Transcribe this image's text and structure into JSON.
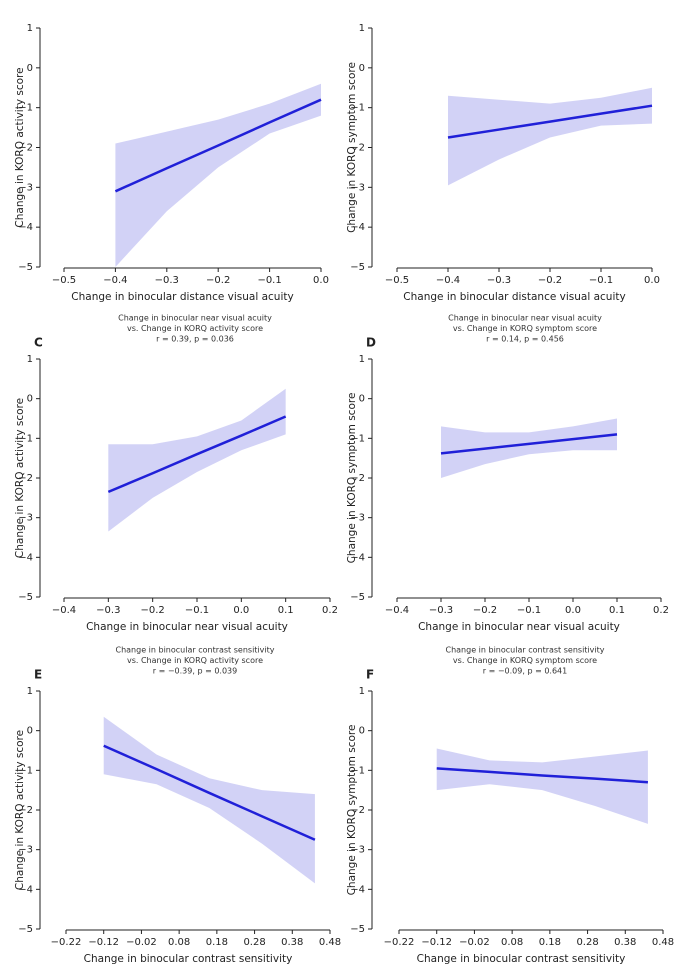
{
  "chart_data": [
    {
      "type": "line",
      "xlabel": "Change in binocular distance visual acuity",
      "ylabel": "Change in KORQ activity score",
      "xlim": [
        -0.5,
        0.0
      ],
      "ylim": [
        -5,
        1
      ],
      "xticks": [
        {
          "value": -0.5,
          "label": "−0.5"
        },
        {
          "value": -0.4,
          "label": "−0.4"
        },
        {
          "value": -0.3,
          "label": "−0.3"
        },
        {
          "value": -0.2,
          "label": "−0.2"
        },
        {
          "value": -0.1,
          "label": "−0.1"
        },
        {
          "value": 0.0,
          "label": "0.0"
        }
      ],
      "yticks": [
        1,
        0,
        {
          "value": -1,
          "label": "−1"
        },
        {
          "value": -2,
          "label": "−2"
        },
        {
          "value": -3,
          "label": "−3"
        },
        {
          "value": -4,
          "label": "−4"
        },
        {
          "value": -5,
          "label": "−5"
        }
      ],
      "x": [
        -0.4,
        -0.3,
        -0.2,
        -0.1,
        0.0
      ],
      "values": [
        -3.1,
        -2.52,
        -1.95,
        -1.37,
        -0.8
      ],
      "ci_lower": [
        -5,
        -3.6,
        -2.5,
        -1.65,
        -1.2
      ],
      "ci_upper": [
        -1.9,
        -1.6,
        -1.3,
        -0.9,
        -0.4
      ],
      "color": "#2020d8",
      "band_color": "#7f7fe6"
    },
    {
      "type": "line",
      "xlabel": "Change in binocular distance visual acuity",
      "ylabel": "Change in KORQ symptom score",
      "xlim": [
        -0.5,
        0.0
      ],
      "ylim": [
        -5,
        1
      ],
      "xticks": [
        {
          "value": -0.5,
          "label": "−0.5"
        },
        {
          "value": -0.4,
          "label": "−0.4"
        },
        {
          "value": -0.3,
          "label": "−0.3"
        },
        {
          "value": -0.2,
          "label": "−0.2"
        },
        {
          "value": -0.1,
          "label": "−0.1"
        },
        {
          "value": 0.0,
          "label": "0.0"
        }
      ],
      "yticks": [
        1,
        0,
        {
          "value": -1,
          "label": "−1"
        },
        {
          "value": -2,
          "label": "−2"
        },
        {
          "value": -3,
          "label": "−3"
        },
        {
          "value": -4,
          "label": "−4"
        },
        {
          "value": -5,
          "label": "−5"
        }
      ],
      "x": [
        -0.4,
        -0.3,
        -0.2,
        -0.1,
        0.0
      ],
      "values": [
        -1.75,
        -1.55,
        -1.35,
        -1.15,
        -0.95
      ],
      "ci_lower": [
        -2.95,
        -2.3,
        -1.75,
        -1.45,
        -1.4
      ],
      "ci_upper": [
        -0.7,
        -0.8,
        -0.9,
        -0.75,
        -0.5
      ],
      "color": "#2020d8",
      "band_color": "#7f7fe6"
    },
    {
      "type": "line",
      "panel_label": "C",
      "title": [
        "Change in binocular near visual acuity",
        "vs. Change in KORQ activity score",
        "r = 0.39,  p = 0.036"
      ],
      "xlabel": "Change in binocular near visual acuity",
      "ylabel": "Change in KORQ activity score",
      "xlim": [
        -0.4,
        0.2
      ],
      "ylim": [
        -5,
        1
      ],
      "xticks": [
        {
          "value": -0.4,
          "label": "−0.4"
        },
        {
          "value": -0.3,
          "label": "−0.3"
        },
        {
          "value": -0.2,
          "label": "−0.2"
        },
        {
          "value": -0.1,
          "label": "−0.1"
        },
        {
          "value": 0.0,
          "label": "0.0"
        },
        0.1,
        0.2
      ],
      "yticks": [
        1,
        0,
        {
          "value": -1,
          "label": "−1"
        },
        {
          "value": -2,
          "label": "−2"
        },
        {
          "value": -3,
          "label": "−3"
        },
        {
          "value": -4,
          "label": "−4"
        },
        {
          "value": -5,
          "label": "−5"
        }
      ],
      "x": [
        -0.3,
        -0.2,
        -0.1,
        0.0,
        0.1
      ],
      "values": [
        -2.35,
        -1.88,
        -1.4,
        -0.93,
        -0.45
      ],
      "ci_lower": [
        -3.35,
        -2.5,
        -1.85,
        -1.3,
        -0.9
      ],
      "ci_upper": [
        -1.15,
        -1.15,
        -0.95,
        -0.55,
        0.25
      ],
      "color": "#2020d8",
      "band_color": "#7f7fe6"
    },
    {
      "type": "line",
      "panel_label": "D",
      "title": [
        "Change in binocular near visual acuity",
        "vs. Change in KORQ symptom score",
        "r = 0.14,  p = 0.456"
      ],
      "xlabel": "Change in binocular near visual acuity",
      "ylabel": "Change in KORQ symptom score",
      "xlim": [
        -0.4,
        0.2
      ],
      "ylim": [
        -5,
        1
      ],
      "xticks": [
        {
          "value": -0.4,
          "label": "−0.4"
        },
        {
          "value": -0.3,
          "label": "−0.3"
        },
        {
          "value": -0.2,
          "label": "−0.2"
        },
        {
          "value": -0.1,
          "label": "−0.1"
        },
        {
          "value": 0.0,
          "label": "0.0"
        },
        0.1,
        0.2
      ],
      "yticks": [
        1,
        0,
        {
          "value": -1,
          "label": "−1"
        },
        {
          "value": -2,
          "label": "−2"
        },
        {
          "value": -3,
          "label": "−3"
        },
        {
          "value": -4,
          "label": "−4"
        },
        {
          "value": -5,
          "label": "−5"
        }
      ],
      "x": [
        -0.3,
        -0.2,
        -0.1,
        0.0,
        0.1
      ],
      "values": [
        -1.38,
        -1.26,
        -1.14,
        -1.02,
        -0.9
      ],
      "ci_lower": [
        -2.0,
        -1.65,
        -1.4,
        -1.3,
        -1.3
      ],
      "ci_upper": [
        -0.7,
        -0.85,
        -0.85,
        -0.7,
        -0.5
      ],
      "color": "#2020d8",
      "band_color": "#7f7fe6"
    },
    {
      "type": "line",
      "panel_label": "E",
      "title": [
        "Change in binocular contrast sensitivity",
        "vs. Change in KORQ activity score",
        "r = −0.39,  p = 0.039"
      ],
      "xlabel": "Change in binocular contrast sensitivity",
      "ylabel": "Change in KORQ activity score",
      "xlim": [
        -0.22,
        0.48
      ],
      "ylim": [
        -5,
        1
      ],
      "xticks": [
        {
          "value": -0.22,
          "label": "−0.22"
        },
        {
          "value": -0.12,
          "label": "−0.12"
        },
        {
          "value": -0.02,
          "label": "−0.02"
        },
        0.08,
        0.18,
        0.28,
        0.38,
        0.48
      ],
      "yticks": [
        1,
        0,
        {
          "value": -1,
          "label": "−1"
        },
        {
          "value": -2,
          "label": "−2"
        },
        {
          "value": -3,
          "label": "−3"
        },
        {
          "value": -4,
          "label": "−4"
        },
        {
          "value": -5,
          "label": "−5"
        }
      ],
      "x": [
        -0.12,
        0.02,
        0.16,
        0.3,
        0.44
      ],
      "values": [
        -0.38,
        -0.97,
        -1.57,
        -2.16,
        -2.75
      ],
      "ci_lower": [
        -1.1,
        -1.35,
        -1.95,
        -2.85,
        -3.85
      ],
      "ci_upper": [
        0.35,
        -0.6,
        -1.2,
        -1.5,
        -1.6
      ],
      "color": "#2020d8",
      "band_color": "#7f7fe6"
    },
    {
      "type": "line",
      "panel_label": "F",
      "title": [
        "Change in binocular contrast sensitivity",
        "vs. Change in KORQ symptom score",
        "r = −0.09,  p = 0.641"
      ],
      "xlabel": "Change in binocular contrast sensitivity",
      "ylabel": "Change in KORQ symptom score",
      "xlim": [
        -0.22,
        0.48
      ],
      "ylim": [
        -5,
        1
      ],
      "xticks": [
        {
          "value": -0.22,
          "label": "−0.22"
        },
        {
          "value": -0.12,
          "label": "−0.12"
        },
        {
          "value": -0.02,
          "label": "−0.02"
        },
        0.08,
        0.18,
        0.28,
        0.38,
        0.48
      ],
      "yticks": [
        1,
        0,
        {
          "value": -1,
          "label": "−1"
        },
        {
          "value": -2,
          "label": "−2"
        },
        {
          "value": -3,
          "label": "−3"
        },
        {
          "value": -4,
          "label": "−4"
        },
        {
          "value": -5,
          "label": "−5"
        }
      ],
      "x": [
        -0.12,
        0.02,
        0.16,
        0.3,
        0.44
      ],
      "values": [
        -0.95,
        -1.04,
        -1.13,
        -1.21,
        -1.3
      ],
      "ci_lower": [
        -1.5,
        -1.35,
        -1.5,
        -1.9,
        -2.35
      ],
      "ci_upper": [
        -0.45,
        -0.75,
        -0.8,
        -0.65,
        -0.5
      ],
      "color": "#2020d8",
      "band_color": "#7f7fe6"
    }
  ]
}
